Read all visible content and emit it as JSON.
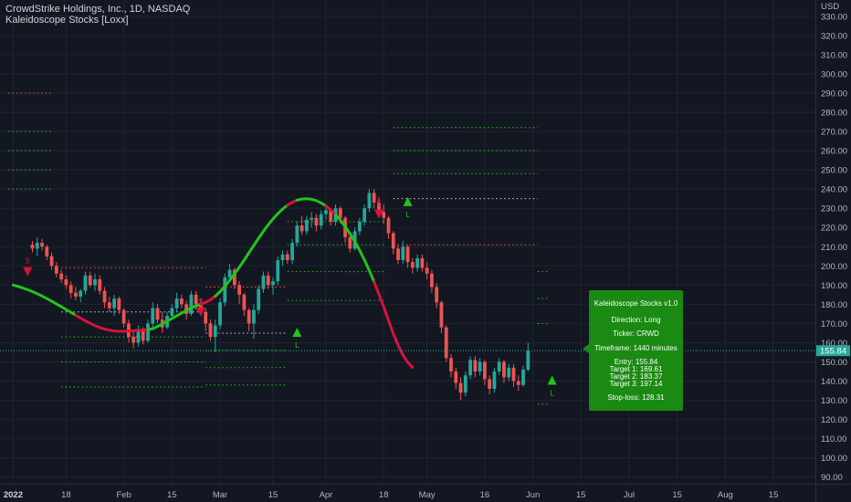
{
  "header": {
    "title": "CrowdStrike Holdings, Inc., 1D, NASDAQ",
    "indicator": "Kaleidoscope Stocks [Loxx]"
  },
  "colors": {
    "background": "#131722",
    "grid": "#1f2430",
    "up": "#26a69a",
    "down": "#ef5350",
    "ma_up": "#22c41c",
    "ma_down": "#d9123c",
    "ma_neutral": "#ffffff",
    "label_green": "#1a8a12",
    "text": "#b2b5be",
    "price_line": "#26a69a"
  },
  "info_box": {
    "title": "Kaleidoscope Stocks v1.0",
    "direction": "Direction: Long",
    "ticker": "Ticker: CRWD",
    "timeframe": "Timeframe: 1440 minutes",
    "entry": "Entry: 155.84",
    "target1": "Target 1: 169.61",
    "target2": "Target 2: 183.37",
    "target3": "Target 3: 197.14",
    "stoploss": "Stop-loss: 128.31"
  },
  "chart_data": {
    "type": "candlestick",
    "y_axis": {
      "unit_label": "USD",
      "range": [
        85,
        342
      ],
      "ticks": [
        "90.00",
        "100.00",
        "110.00",
        "120.00",
        "130.00",
        "140.00",
        "150.00",
        "160.00",
        "170.00",
        "180.00",
        "190.00",
        "200.00",
        "210.00",
        "220.00",
        "230.00",
        "240.00",
        "250.00",
        "260.00",
        "270.00",
        "280.00",
        "290.00",
        "300.00",
        "310.00",
        "320.00",
        "330.00"
      ],
      "tick_values": [
        90,
        100,
        110,
        120,
        130,
        140,
        150,
        160,
        170,
        180,
        190,
        200,
        210,
        220,
        230,
        240,
        250,
        260,
        270,
        280,
        290,
        300,
        310,
        320,
        330
      ],
      "last_price_label": "155.84",
      "last_price": 155.84
    },
    "x_axis": {
      "labels": [
        "2022",
        "18",
        "Feb",
        "15",
        "Mar",
        "15",
        "Apr",
        "18",
        "May",
        "16",
        "Jun",
        "15",
        "Jul",
        "15",
        "Aug",
        "15"
      ],
      "label_day_index": [
        -4,
        7,
        19,
        29,
        39,
        50,
        61,
        73,
        82,
        94,
        104,
        114,
        124,
        134,
        144,
        154
      ],
      "bold_labels": [
        "2022"
      ]
    },
    "candles": [
      [
        211,
        213,
        207,
        209
      ],
      [
        209,
        215,
        205,
        212
      ],
      [
        212,
        214,
        208,
        210
      ],
      [
        210,
        211,
        203,
        205
      ],
      [
        205,
        207,
        198,
        200
      ],
      [
        200,
        202,
        194,
        196
      ],
      [
        196,
        198,
        191,
        193
      ],
      [
        193,
        195,
        188,
        190
      ],
      [
        190,
        192,
        183,
        186
      ],
      [
        186,
        189,
        182,
        184
      ],
      [
        184,
        188,
        181,
        187
      ],
      [
        187,
        197,
        185,
        195
      ],
      [
        195,
        197,
        189,
        190
      ],
      [
        190,
        196,
        187,
        193
      ],
      [
        193,
        195,
        185,
        187
      ],
      [
        187,
        189,
        178,
        181
      ],
      [
        181,
        184,
        176,
        178
      ],
      [
        178,
        185,
        174,
        183
      ],
      [
        183,
        184,
        175,
        177
      ],
      [
        177,
        178,
        168,
        170
      ],
      [
        170,
        172,
        160,
        163
      ],
      [
        163,
        166,
        157,
        160
      ],
      [
        160,
        169,
        158,
        166
      ],
      [
        166,
        168,
        159,
        161
      ],
      [
        161,
        172,
        160,
        170
      ],
      [
        170,
        181,
        168,
        178
      ],
      [
        178,
        180,
        170,
        172
      ],
      [
        172,
        176,
        165,
        168
      ],
      [
        168,
        176,
        167,
        174
      ],
      [
        174,
        180,
        172,
        178
      ],
      [
        178,
        186,
        176,
        183
      ],
      [
        183,
        185,
        178,
        180
      ],
      [
        180,
        182,
        172,
        175
      ],
      [
        175,
        187,
        174,
        185
      ],
      [
        185,
        187,
        177,
        180
      ],
      [
        180,
        183,
        174,
        176
      ],
      [
        176,
        178,
        166,
        170
      ],
      [
        170,
        172,
        161,
        163
      ],
      [
        163,
        172,
        155,
        169
      ],
      [
        169,
        183,
        167,
        181
      ],
      [
        181,
        196,
        179,
        194
      ],
      [
        194,
        201,
        192,
        198
      ],
      [
        198,
        199,
        188,
        190
      ],
      [
        190,
        192,
        180,
        185
      ],
      [
        185,
        186,
        174,
        177
      ],
      [
        177,
        178,
        166,
        170
      ],
      [
        170,
        180,
        162,
        177
      ],
      [
        177,
        190,
        175,
        188
      ],
      [
        188,
        197,
        186,
        195
      ],
      [
        195,
        197,
        188,
        190
      ],
      [
        190,
        194,
        185,
        192
      ],
      [
        192,
        205,
        190,
        203
      ],
      [
        203,
        208,
        200,
        206
      ],
      [
        206,
        208,
        201,
        203
      ],
      [
        203,
        214,
        201,
        212
      ],
      [
        212,
        223,
        210,
        221
      ],
      [
        221,
        226,
        216,
        218
      ],
      [
        218,
        226,
        216,
        224
      ],
      [
        224,
        228,
        220,
        225
      ],
      [
        225,
        227,
        218,
        221
      ],
      [
        221,
        229,
        219,
        227
      ],
      [
        227,
        232,
        224,
        229
      ],
      [
        229,
        230,
        221,
        223
      ],
      [
        223,
        232,
        221,
        230
      ],
      [
        230,
        231,
        222,
        225
      ],
      [
        225,
        226,
        212,
        215
      ],
      [
        215,
        216,
        207,
        209
      ],
      [
        209,
        220,
        208,
        218
      ],
      [
        218,
        225,
        216,
        223
      ],
      [
        223,
        232,
        221,
        230
      ],
      [
        230,
        240,
        228,
        238
      ],
      [
        238,
        240,
        230,
        233
      ],
      [
        233,
        236,
        225,
        228
      ],
      [
        228,
        232,
        222,
        225
      ],
      [
        225,
        226,
        214,
        217
      ],
      [
        217,
        218,
        206,
        209
      ],
      [
        209,
        211,
        201,
        203
      ],
      [
        203,
        213,
        201,
        210
      ],
      [
        210,
        211,
        199,
        202
      ],
      [
        202,
        204,
        196,
        199
      ],
      [
        199,
        206,
        197,
        204
      ],
      [
        204,
        206,
        197,
        199
      ],
      [
        199,
        202,
        193,
        196
      ],
      [
        196,
        198,
        186,
        189
      ],
      [
        189,
        191,
        178,
        181
      ],
      [
        181,
        182,
        165,
        168
      ],
      [
        168,
        169,
        150,
        152
      ],
      [
        152,
        154,
        142,
        145
      ],
      [
        145,
        147,
        136,
        139
      ],
      [
        139,
        142,
        130,
        134
      ],
      [
        134,
        145,
        132,
        143
      ],
      [
        143,
        153,
        141,
        151
      ],
      [
        151,
        153,
        142,
        145
      ],
      [
        145,
        152,
        143,
        150
      ],
      [
        150,
        151,
        138,
        141
      ],
      [
        141,
        143,
        133,
        136
      ],
      [
        136,
        147,
        134,
        145
      ],
      [
        145,
        152,
        143,
        150
      ],
      [
        150,
        151,
        139,
        142
      ],
      [
        142,
        149,
        140,
        147
      ],
      [
        147,
        149,
        137,
        140
      ],
      [
        140,
        143,
        135,
        138
      ],
      [
        138,
        148,
        137,
        146
      ],
      [
        146,
        160,
        145,
        155.84
      ]
    ],
    "ma_series": [
      190.0,
      189.3,
      188.5,
      187.6,
      186.6,
      185.5,
      184.3,
      183.0,
      181.6,
      180.2,
      178.8,
      177.3,
      175.8,
      174.3,
      172.8,
      171.4,
      170.1,
      168.9,
      167.9,
      167.1,
      166.5,
      166.1,
      165.9,
      165.9,
      166.0,
      166.2,
      166.4,
      166.6,
      166.8,
      167.3,
      168.4,
      169.8,
      171.2,
      172.6,
      174.0,
      175.4,
      176.8,
      178.1,
      179.2,
      180.1,
      181.0,
      182.3,
      184.2,
      186.6,
      189.4,
      192.5,
      195.8,
      199.3,
      203.0,
      206.8,
      210.6,
      214.4,
      218.0,
      221.4,
      224.5,
      227.2,
      229.6,
      231.6,
      233.1,
      234.2,
      234.8,
      235.0,
      234.7,
      234.0,
      232.8,
      231.2,
      229.1,
      226.7,
      223.8,
      220.5,
      216.8,
      212.7,
      208.1,
      203.1,
      197.6,
      191.7,
      185.4,
      178.7,
      171.6,
      164.8,
      158.7,
      153.6,
      149.7,
      147.2
    ],
    "ma_start_index": -4,
    "ma_color_runs": [
      [
        "up",
        -4,
        9
      ],
      [
        "down",
        9,
        24
      ],
      [
        "up",
        24,
        35
      ],
      [
        "down",
        35,
        38
      ],
      [
        "up",
        38,
        53
      ],
      [
        "down",
        53,
        55
      ],
      [
        "up",
        55,
        61
      ],
      [
        "down",
        61,
        63
      ],
      [
        "up",
        63,
        71
      ],
      [
        "down",
        71,
        97
      ],
      [
        "neutral",
        97,
        100
      ]
    ],
    "signals": [
      {
        "type": "sell",
        "index": -1,
        "price": 197,
        "letter": "S"
      },
      {
        "type": "sell",
        "index": 35,
        "price": 176,
        "letter": "S"
      },
      {
        "type": "buy",
        "index": 55,
        "price": 165,
        "letter": "L"
      },
      {
        "type": "sell",
        "index": 72,
        "price": 227,
        "letter": "S"
      },
      {
        "type": "buy",
        "index": 78,
        "price": 233,
        "letter": "L"
      },
      {
        "type": "buy",
        "index": 108,
        "price": 140,
        "letter": "L"
      }
    ],
    "levels": [
      {
        "price": 290,
        "from": -5,
        "to": 4,
        "color": "#ef5350"
      },
      {
        "price": 270,
        "from": -5,
        "to": 4,
        "color": "#22c41c"
      },
      {
        "price": 260,
        "from": -5,
        "to": 4,
        "color": "#22c41c"
      },
      {
        "price": 250,
        "from": -5,
        "to": 4,
        "color": "#22c41c"
      },
      {
        "price": 240,
        "from": -5,
        "to": 4,
        "color": "#22c41c"
      },
      {
        "price": 199,
        "from": 6,
        "to": 36,
        "color": "#ef5350"
      },
      {
        "price": 176,
        "from": 6,
        "to": 36,
        "color": "#d1d4dc"
      },
      {
        "price": 163,
        "from": 6,
        "to": 36,
        "color": "#22c41c"
      },
      {
        "price": 150,
        "from": 6,
        "to": 36,
        "color": "#22c41c"
      },
      {
        "price": 137,
        "from": 6,
        "to": 36,
        "color": "#22c41c"
      },
      {
        "price": 189,
        "from": 36,
        "to": 53,
        "color": "#ef5350"
      },
      {
        "price": 165,
        "from": 36,
        "to": 53,
        "color": "#d1d4dc"
      },
      {
        "price": 156,
        "from": 36,
        "to": 53,
        "color": "#22c41c"
      },
      {
        "price": 147,
        "from": 36,
        "to": 53,
        "color": "#22c41c"
      },
      {
        "price": 138,
        "from": 36,
        "to": 53,
        "color": "#22c41c"
      },
      {
        "price": 223,
        "from": 53,
        "to": 73,
        "color": "#22c41c"
      },
      {
        "price": 211,
        "from": 53,
        "to": 73,
        "color": "#22c41c"
      },
      {
        "price": 197,
        "from": 53,
        "to": 73,
        "color": "#22c41c"
      },
      {
        "price": 182,
        "from": 53,
        "to": 73,
        "color": "#22c41c"
      },
      {
        "price": 235,
        "from": 75,
        "to": 105,
        "color": "#d1d4dc"
      },
      {
        "price": 248,
        "from": 75,
        "to": 105,
        "color": "#22c41c"
      },
      {
        "price": 260,
        "from": 75,
        "to": 105,
        "color": "#22c41c"
      },
      {
        "price": 272,
        "from": 75,
        "to": 105,
        "color": "#22c41c"
      },
      {
        "price": 211,
        "from": 75,
        "to": 105,
        "color": "#ef5350"
      },
      {
        "price": 197,
        "from": 105,
        "to": 107,
        "color": "#22c41c"
      },
      {
        "price": 183,
        "from": 105,
        "to": 107,
        "color": "#22c41c"
      },
      {
        "price": 170,
        "from": 105,
        "to": 107,
        "color": "#22c41c"
      },
      {
        "price": 128,
        "from": 105,
        "to": 107,
        "color": "#ef5350"
      }
    ]
  }
}
